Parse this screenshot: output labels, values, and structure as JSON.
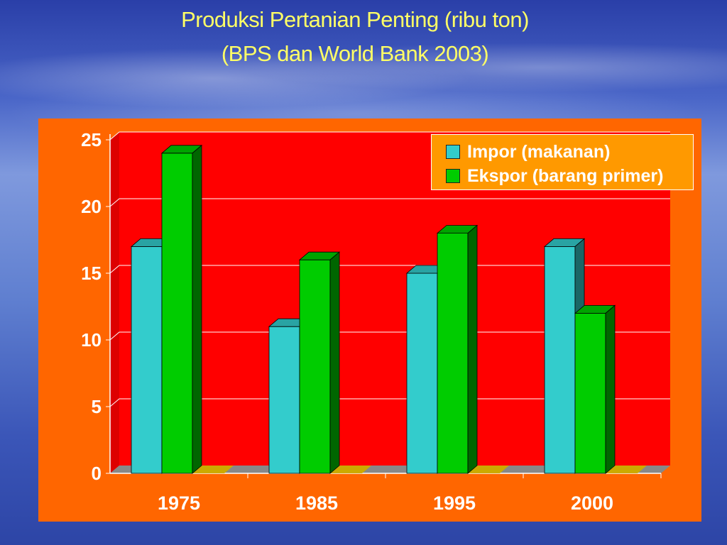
{
  "slide": {
    "title_line1": "Produksi Pertanian Penting (ribu ton)",
    "title_line2": "(BPS dan World Bank 2003)"
  },
  "colors": {
    "panel": "#ff6600",
    "plot_area": "#ff0000",
    "impor": "#33cccc",
    "ekspor": "#00cc00",
    "legend_bg": "#ff9900",
    "title": "#ffff66"
  },
  "chart_data": {
    "type": "bar",
    "categories": [
      "1975",
      "1985",
      "1995",
      "2000"
    ],
    "series": [
      {
        "name": "Impor (makanan)",
        "values": [
          17,
          11,
          15,
          17
        ]
      },
      {
        "name": "Ekspor (barang primer)",
        "values": [
          24,
          16,
          18,
          12
        ]
      }
    ],
    "ylim": [
      0,
      25
    ],
    "yticks": [
      "0",
      "5",
      "10",
      "15",
      "20",
      "25"
    ],
    "grid": true,
    "legend": "top-right",
    "style": "3d-clustered"
  }
}
